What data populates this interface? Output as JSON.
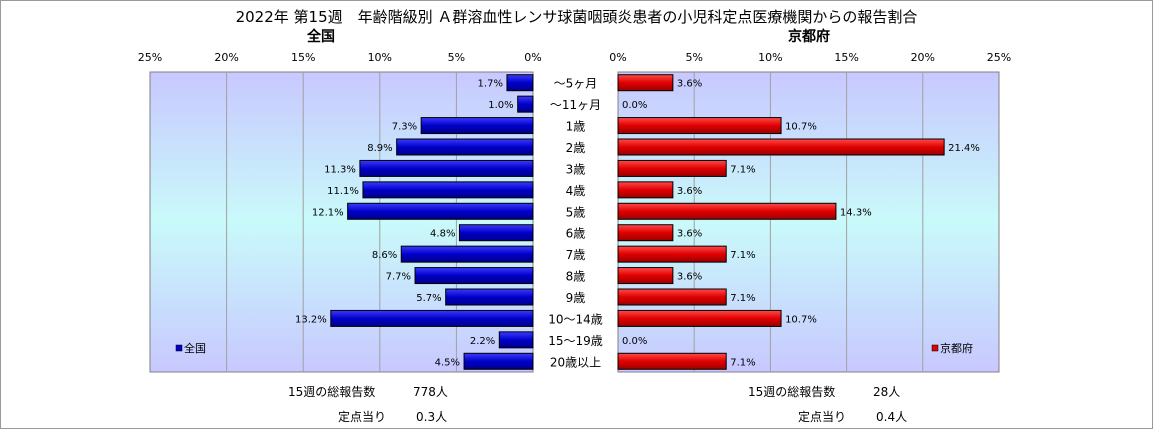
{
  "title": "2022年 第15週　年齢階級別 Ａ群溶血性レンサ球菌咽頭炎患者の小児科定点医療機関からの報告割合",
  "colors": {
    "national": "#0000c8",
    "kyoto": "#e00000",
    "edge": "#000000"
  },
  "chart_data": [
    {
      "type": "bar",
      "orientation": "horizontal",
      "direction": "right-to-left",
      "title": "全国",
      "legend": "全国",
      "legend_position": "bottom-left",
      "categories": [
        "～5ヶ月",
        "～11ヶ月",
        "1歳",
        "2歳",
        "3歳",
        "4歳",
        "5歳",
        "6歳",
        "7歳",
        "8歳",
        "9歳",
        "10～14歳",
        "15～19歳",
        "20歳以上"
      ],
      "values": [
        1.7,
        1.0,
        7.3,
        8.9,
        11.3,
        11.1,
        12.1,
        4.8,
        8.6,
        7.7,
        5.7,
        13.2,
        2.2,
        4.5
      ],
      "value_labels": [
        "1.7%",
        "1.0%",
        "7.3%",
        "8.9%",
        "11.3%",
        "11.1%",
        "12.1%",
        "4.8%",
        "8.6%",
        "7.7%",
        "5.7%",
        "13.2%",
        "2.2%",
        "4.5%"
      ],
      "xlim": [
        0,
        25
      ],
      "ticks": [
        25,
        20,
        15,
        10,
        5,
        0
      ],
      "tick_labels": [
        "25%",
        "20%",
        "15%",
        "10%",
        "5%",
        "0%"
      ],
      "grid": true
    },
    {
      "type": "bar",
      "orientation": "horizontal",
      "direction": "left-to-right",
      "title": "京都府",
      "legend": "京都府",
      "legend_position": "bottom-right",
      "categories": [
        "～5ヶ月",
        "～11ヶ月",
        "1歳",
        "2歳",
        "3歳",
        "4歳",
        "5歳",
        "6歳",
        "7歳",
        "8歳",
        "9歳",
        "10～14歳",
        "15～19歳",
        "20歳以上"
      ],
      "values": [
        3.6,
        0.0,
        10.7,
        21.4,
        7.1,
        3.6,
        14.3,
        3.6,
        7.1,
        3.6,
        7.1,
        10.7,
        0.0,
        7.1
      ],
      "value_labels": [
        "3.6%",
        "0.0%",
        "10.7%",
        "21.4%",
        "7.1%",
        "3.6%",
        "14.3%",
        "3.6%",
        "7.1%",
        "3.6%",
        "7.1%",
        "10.7%",
        "0.0%",
        "7.1%"
      ],
      "xlim": [
        0,
        25
      ],
      "ticks": [
        0,
        5,
        10,
        15,
        20,
        25
      ],
      "tick_labels": [
        "0%",
        "5%",
        "10%",
        "15%",
        "20%",
        "25%"
      ],
      "grid": true
    }
  ],
  "footer": {
    "national": {
      "total_label": "15週の総報告数",
      "total_value": "778人",
      "per_label": "定点当り",
      "per_value": "0.3人"
    },
    "kyoto": {
      "total_label": "15週の総報告数",
      "total_value": "28人",
      "per_label": "定点当り",
      "per_value": "0.4人"
    }
  }
}
